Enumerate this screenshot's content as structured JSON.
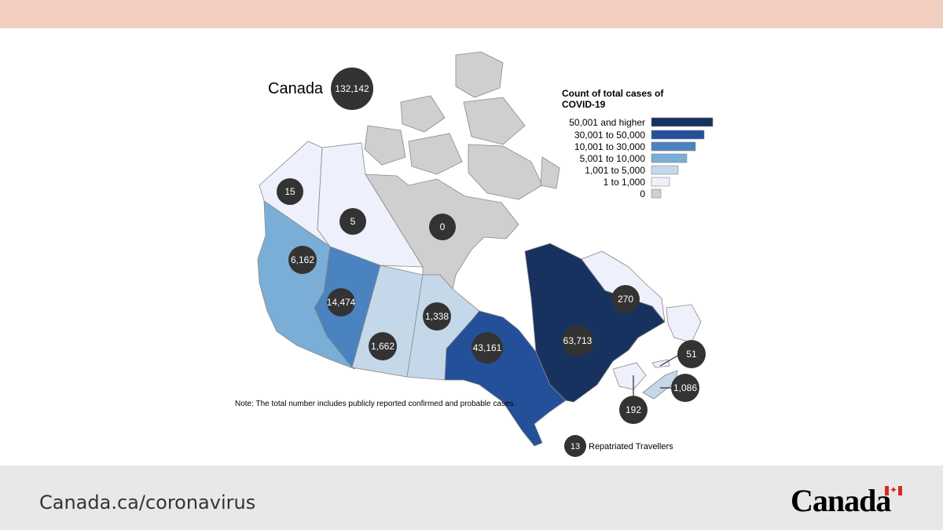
{
  "header": {
    "band_color": "#f2cfc0"
  },
  "map": {
    "title": "Canada",
    "total_cases": "132,142",
    "legend": {
      "title": "Count of total cases of COVID-19",
      "entries": [
        {
          "label": "50,001 and higher",
          "color": "#17325f"
        },
        {
          "label": "30,001 to 50,000",
          "color": "#24509a"
        },
        {
          "label": "10,001 to 30,000",
          "color": "#4a83bf"
        },
        {
          "label": "5,001 to 10,000",
          "color": "#7aaed6"
        },
        {
          "label": "1,001 to 5,000",
          "color": "#c5d8ea"
        },
        {
          "label": "1 to 1,000",
          "color": "#eef1fb"
        },
        {
          "label": "0",
          "color": "#cfcfcf"
        }
      ]
    },
    "regions": [
      {
        "name": "Yukon",
        "cases": "15",
        "color": "#eef1fb"
      },
      {
        "name": "Northwest Territories",
        "cases": "5",
        "color": "#eef1fb"
      },
      {
        "name": "Nunavut",
        "cases": "0",
        "color": "#cfcfcf"
      },
      {
        "name": "British Columbia",
        "cases": "6,162",
        "color": "#7aaed6"
      },
      {
        "name": "Alberta",
        "cases": "14,474",
        "color": "#4a83bf"
      },
      {
        "name": "Saskatchewan",
        "cases": "1,662",
        "color": "#c5d8ea"
      },
      {
        "name": "Manitoba",
        "cases": "1,338",
        "color": "#c5d8ea"
      },
      {
        "name": "Ontario",
        "cases": "43,161",
        "color": "#24509a"
      },
      {
        "name": "Quebec",
        "cases": "63,713",
        "color": "#17325f"
      },
      {
        "name": "Newfoundland and Labrador",
        "cases": "270",
        "color": "#eef1fb"
      },
      {
        "name": "Prince Edward Island",
        "cases": "51",
        "color": "#eef1fb"
      },
      {
        "name": "Nova Scotia",
        "cases": "1,086",
        "color": "#c5d8ea"
      },
      {
        "name": "New Brunswick",
        "cases": "192",
        "color": "#eef1fb"
      }
    ],
    "repatriated": {
      "count": "13",
      "label": "Repatriated Travellers"
    },
    "note": "Note: The total number includes publicly reported confirmed and probable cases.",
    "bubble_color": "#333333",
    "border_color": "#888888"
  },
  "footer": {
    "url": "Canada.ca/coronavirus",
    "wordmark": "Canada",
    "flag_color": "#d52b1e",
    "leaf_glyph": "✦"
  }
}
